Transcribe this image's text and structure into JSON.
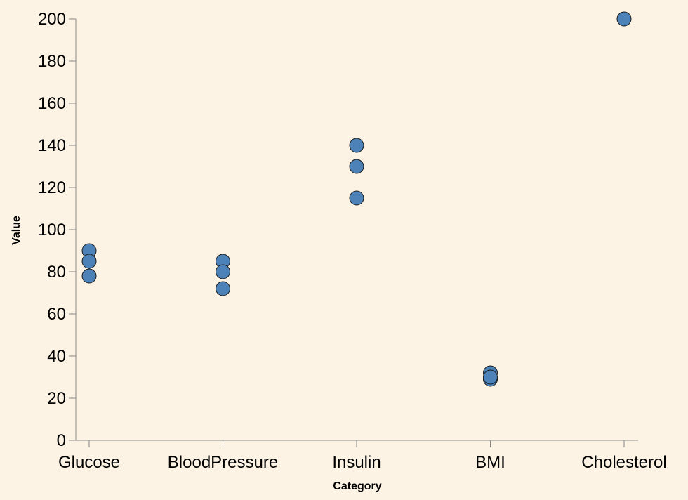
{
  "colors": {
    "background": "#fdf3e4",
    "point_fill": "#4c82b8",
    "point_stroke": "#1a1a1a",
    "axis": "#888888"
  },
  "chart_data": {
    "type": "scatter",
    "xlabel": "Category",
    "ylabel": "Value",
    "categories": [
      "Glucose",
      "BloodPressure",
      "Insulin",
      "BMI",
      "Cholesterol"
    ],
    "ylim": [
      0,
      200
    ],
    "yticks": [
      0,
      20,
      40,
      60,
      80,
      100,
      120,
      140,
      160,
      180,
      200
    ],
    "grid": false,
    "points": [
      {
        "x": "Glucose",
        "y": 90
      },
      {
        "x": "Glucose",
        "y": 85
      },
      {
        "x": "Glucose",
        "y": 78
      },
      {
        "x": "BloodPressure",
        "y": 85
      },
      {
        "x": "BloodPressure",
        "y": 80
      },
      {
        "x": "BloodPressure",
        "y": 72
      },
      {
        "x": "Insulin",
        "y": 140
      },
      {
        "x": "Insulin",
        "y": 130
      },
      {
        "x": "Insulin",
        "y": 115
      },
      {
        "x": "BMI",
        "y": 32
      },
      {
        "x": "BMI",
        "y": 29
      },
      {
        "x": "BMI",
        "y": 30
      },
      {
        "x": "Cholesterol",
        "y": 200
      }
    ]
  }
}
